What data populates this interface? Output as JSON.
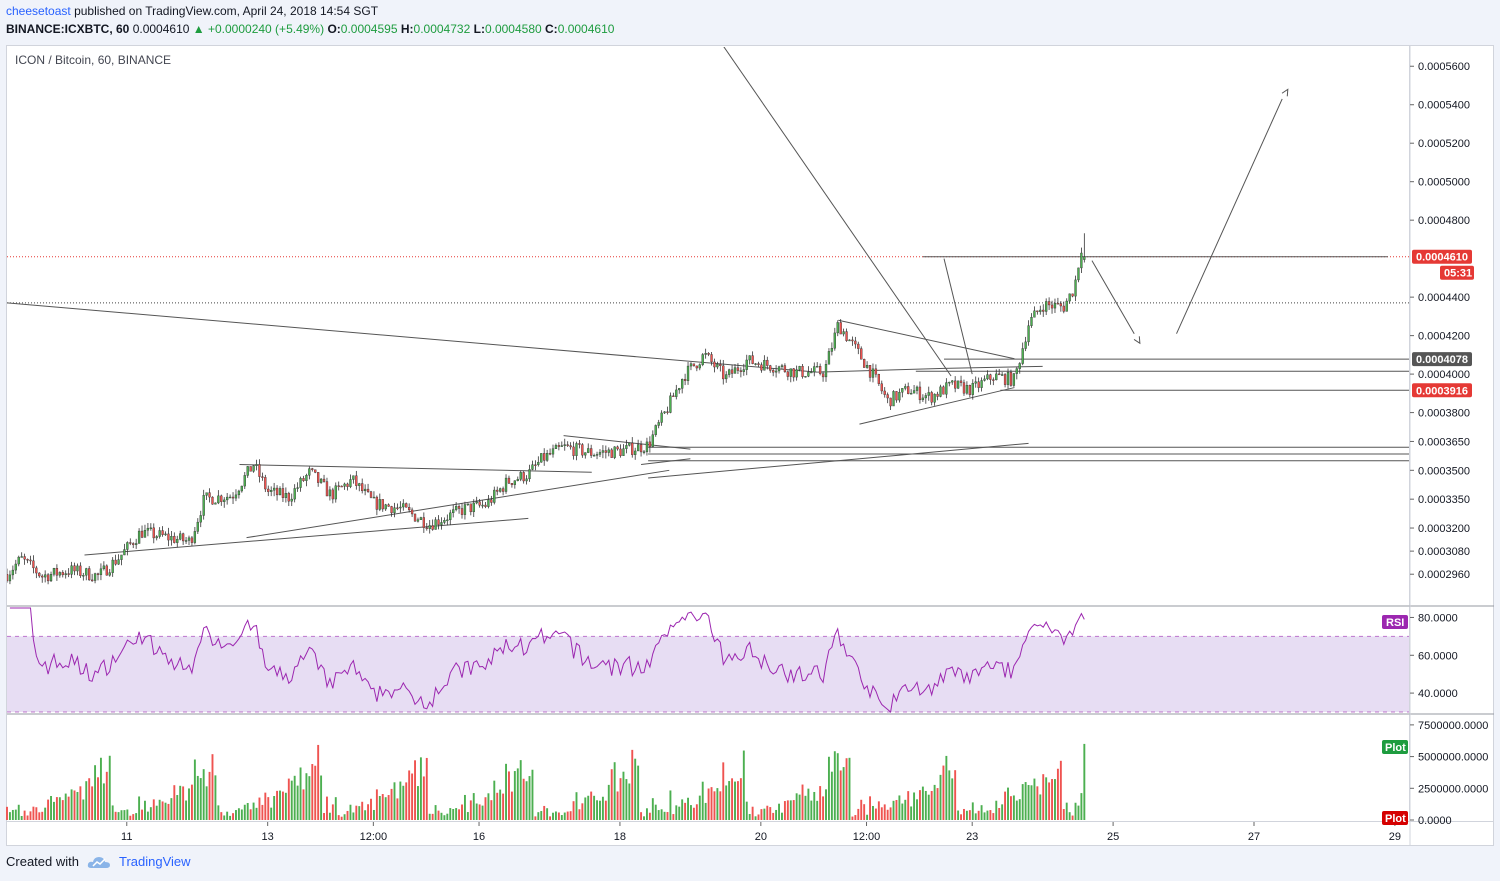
{
  "header": {
    "author": "cheesetoast",
    "published": "published on TradingView.com, April 24, 2018 14:54 SGT",
    "symbol": "BINANCE:ICXBTC, 60",
    "last": "0.0004610",
    "change": "▲ +0.0000240 (+5.49%)",
    "o_label": "O:",
    "o": "0.0004595",
    "h_label": "H:",
    "h": "0.0004732",
    "l_label": "L:",
    "l": "0.0004580",
    "c_label": "C:",
    "c": "0.0004610"
  },
  "footer": {
    "created_with": "Created with",
    "brand": "TradingView",
    "icon": "tradingview-cloud-icon"
  },
  "colors": {
    "up": "#4caf50",
    "down": "#ef5350",
    "rsi": "#9c27b0",
    "rsi_band": "#e1d5f0",
    "price_line": "#e53935",
    "drawing": "#555555"
  },
  "chart_data": [
    {
      "type": "candlestick",
      "title": "ICON / Bitcoin, 60, BINANCE",
      "ylim": [
        0.00028,
        0.00057
      ],
      "yticks": [
        "0.0005600",
        "0.0005400",
        "0.0005200",
        "0.0005000",
        "0.0004800",
        "0.0004400",
        "0.0004200",
        "0.0004000",
        "0.0003800",
        "0.0003650",
        "0.0003500",
        "0.0003350",
        "0.0003200",
        "0.0003080",
        "0.0002960"
      ],
      "ytick_values": [
        0.00056,
        0.00054,
        0.00052,
        0.0005,
        0.00048,
        0.00044,
        0.00042,
        0.0004,
        0.00038,
        0.000365,
        0.00035,
        0.000335,
        0.00032,
        0.000308,
        0.000296
      ],
      "xticks": [
        "11",
        "13",
        "12:00",
        "16",
        "18",
        "20",
        "12:00",
        "23",
        "25",
        "27",
        "29"
      ],
      "xtick_days": [
        11,
        13,
        14.5,
        16,
        18,
        20,
        21.5,
        23,
        25,
        27,
        29
      ],
      "x_range_days": [
        9.3,
        29.2
      ],
      "data_end_day": 24.6,
      "price_tags": [
        {
          "label": "0.0004610",
          "value": 0.000461,
          "color": "#e53935"
        },
        {
          "label": "05:31",
          "value": 0.000461,
          "color": "#e53935",
          "countdown": true
        },
        {
          "label": "0.0004078",
          "value": 0.0004078,
          "color": "#555555"
        },
        {
          "label": "0.0003916",
          "value": 0.0003916,
          "color": "#e53935"
        }
      ],
      "anchors": [
        [
          9.3,
          0.000296
        ],
        [
          9.5,
          0.000304
        ],
        [
          9.8,
          0.000295
        ],
        [
          10.2,
          0.000298
        ],
        [
          10.6,
          0.000295
        ],
        [
          10.9,
          0.000305
        ],
        [
          11.2,
          0.000318
        ],
        [
          11.6,
          0.000315
        ],
        [
          11.9,
          0.000313
        ],
        [
          12.1,
          0.000335
        ],
        [
          12.5,
          0.000337
        ],
        [
          12.8,
          0.000353
        ],
        [
          13.0,
          0.000339
        ],
        [
          13.3,
          0.000336
        ],
        [
          13.6,
          0.000349
        ],
        [
          13.9,
          0.000337
        ],
        [
          14.2,
          0.000345
        ],
        [
          14.5,
          0.000333
        ],
        [
          14.9,
          0.00033
        ],
        [
          15.3,
          0.000322
        ],
        [
          15.8,
          0.00033
        ],
        [
          16.1,
          0.000332
        ],
        [
          16.4,
          0.000344
        ],
        [
          16.7,
          0.000348
        ],
        [
          16.9,
          0.000356
        ],
        [
          17.2,
          0.000362
        ],
        [
          17.6,
          0.000359
        ],
        [
          18.0,
          0.00036
        ],
        [
          18.4,
          0.000363
        ],
        [
          18.7,
          0.000384
        ],
        [
          18.9,
          0.000399
        ],
        [
          19.2,
          0.00041
        ],
        [
          19.5,
          0.000398
        ],
        [
          19.8,
          0.000407
        ],
        [
          20.2,
          0.000404
        ],
        [
          20.5,
          0.000401
        ],
        [
          20.9,
          0.000401
        ],
        [
          21.1,
          0.000426
        ],
        [
          21.4,
          0.00041
        ],
        [
          21.6,
          0.000399
        ],
        [
          21.8,
          0.000386
        ],
        [
          22.1,
          0.000392
        ],
        [
          22.4,
          0.000388
        ],
        [
          22.7,
          0.000394
        ],
        [
          23.0,
          0.000392
        ],
        [
          23.3,
          0.000399
        ],
        [
          23.6,
          0.000397
        ],
        [
          23.8,
          0.000426
        ],
        [
          24.0,
          0.000436
        ],
        [
          24.3,
          0.000435
        ],
        [
          24.45,
          0.000445
        ],
        [
          24.55,
          0.000466
        ],
        [
          24.6,
          0.000461
        ]
      ],
      "volatility": 3.5e-06,
      "seed": 7
    },
    {
      "type": "line",
      "title": "RSI",
      "ylim": [
        30,
        85
      ],
      "yticks": [
        "80.0000",
        "60.0000",
        "40.0000"
      ],
      "ytick_values": [
        80,
        60,
        40
      ],
      "bands": [
        70,
        30
      ],
      "series": [
        {
          "name": "RSI",
          "values_from": "price"
        }
      ]
    },
    {
      "type": "bar",
      "title": "Plot",
      "ylim": [
        0,
        8200000
      ],
      "yticks": [
        "7500000.0000",
        "5000000.0000",
        "2500000.0000",
        "0.0000"
      ],
      "ytick_values": [
        7500000,
        5000000,
        2500000,
        0
      ],
      "tags": [
        {
          "label": "Plot",
          "color": "#1e9c3f"
        },
        {
          "label": "Plot",
          "color": "#d50000"
        }
      ]
    }
  ],
  "drawings": {
    "lines": [
      [
        [
          9.3,
          0.000437
        ],
        [
          20.8,
          0.000401
        ]
      ],
      [
        [
          20.8,
          0.000401
        ],
        [
          22.6,
          0.000403
        ]
      ],
      [
        [
          22.6,
          0.000403
        ],
        [
          24.0,
          0.000404
        ]
      ],
      [
        [
          12.6,
          0.000353
        ],
        [
          17.6,
          0.000349
        ]
      ],
      [
        [
          10.4,
          0.000306
        ],
        [
          16.7,
          0.000325
        ]
      ],
      [
        [
          12.7,
          0.000315
        ],
        [
          18.7,
          0.00035
        ]
      ],
      [
        [
          18.4,
          0.000346
        ],
        [
          23.8,
          0.000364
        ]
      ],
      [
        [
          17.2,
          0.000368
        ],
        [
          19.0,
          0.000361
        ]
      ],
      [
        [
          18.3,
          0.000353
        ],
        [
          19.0,
          0.000356
        ]
      ],
      [
        [
          21.1,
          0.000428
        ],
        [
          23.6,
          0.000408
        ]
      ],
      [
        [
          21.4,
          0.000374
        ],
        [
          23.6,
          0.000393
        ]
      ],
      [
        [
          19.1,
          0.00059
        ],
        [
          22.7,
          0.000399
        ]
      ],
      [
        [
          22.6,
          0.00046
        ],
        [
          23.0,
          0.0004
        ]
      ],
      [
        [
          24.7,
          0.000459
        ],
        [
          25.3,
          0.000421
        ]
      ],
      [
        [
          25.9,
          0.000421
        ],
        [
          27.4,
          0.000543
        ]
      ]
    ],
    "hlines": [
      {
        "y": 0.0004078,
        "from": 22.6,
        "to": 29.2
      },
      {
        "y": 0.0004015,
        "from": 22.2,
        "to": 29.2
      },
      {
        "y": 0.0003916,
        "from": 23.4,
        "to": 29.2
      },
      {
        "y": 0.000362,
        "from": 18.4,
        "to": 29.2
      },
      {
        "y": 0.0003585,
        "from": 18.4,
        "to": 29.2
      },
      {
        "y": 0.000355,
        "from": 18.4,
        "to": 29.2
      },
      {
        "y": 0.000461,
        "from": 22.3,
        "to": 28.9
      }
    ],
    "dotted_lines": [
      {
        "y": 0.000461,
        "color": "#e53935"
      },
      {
        "y": 0.000437,
        "color": "#444444"
      }
    ],
    "arrows": [
      [
        [
          25.3,
          0.000421
        ],
        [
          25.38,
          0.000416
        ]
      ],
      [
        [
          27.4,
          0.000543
        ],
        [
          27.48,
          0.000548
        ]
      ]
    ]
  }
}
